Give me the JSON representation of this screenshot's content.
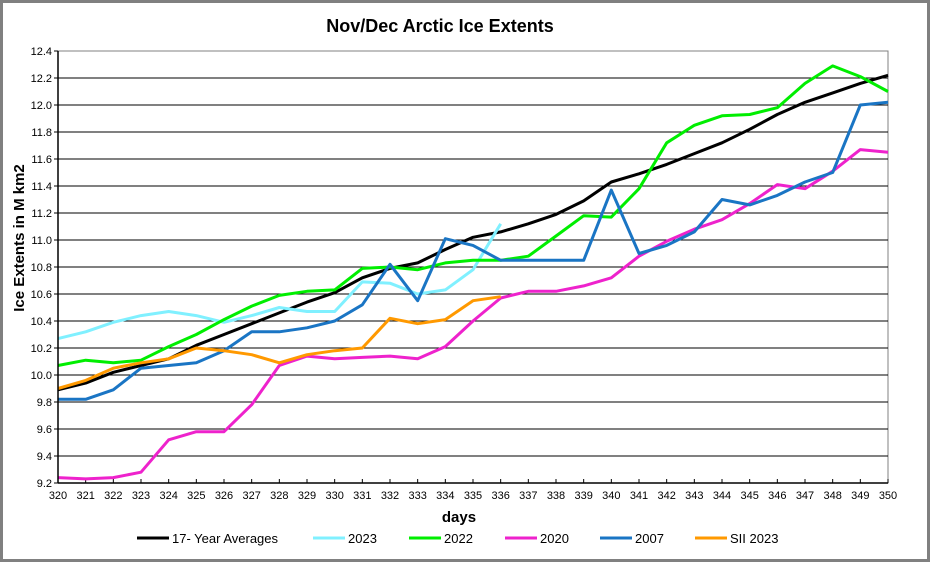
{
  "chart_data": {
    "type": "line",
    "title": "Nov/Dec Arctic Ice Extents",
    "xlabel": "days",
    "ylabel": "Ice Extents in M km2",
    "xlim": [
      320,
      350
    ],
    "ylim": [
      9.2,
      12.4
    ],
    "grid": "horizontal",
    "legend_position": "bottom",
    "x_ticks": [
      "320",
      "321",
      "322",
      "323",
      "324",
      "325",
      "326",
      "327",
      "328",
      "329",
      "330",
      "331",
      "332",
      "333",
      "334",
      "335",
      "336",
      "337",
      "338",
      "339",
      "340",
      "341",
      "342",
      "343",
      "344",
      "345",
      "346",
      "347",
      "348",
      "349",
      "350"
    ],
    "y_ticks": [
      "9.2",
      "9.4",
      "9.6",
      "9.8",
      "10.0",
      "10.2",
      "10.4",
      "10.6",
      "10.8",
      "11.0",
      "11.2",
      "11.4",
      "11.6",
      "11.8",
      "12.0",
      "12.2",
      "12.4"
    ],
    "series": [
      {
        "name": "17- Year Averages",
        "color": "#000000",
        "x": [
          320,
          321,
          322,
          323,
          324,
          325,
          326,
          327,
          328,
          329,
          330,
          331,
          332,
          333,
          334,
          335,
          336,
          337,
          338,
          339,
          340,
          341,
          342,
          343,
          344,
          345,
          346,
          347,
          348,
          349,
          350
        ],
        "values": [
          9.89,
          9.94,
          10.02,
          10.07,
          10.12,
          10.22,
          10.3,
          10.38,
          10.46,
          10.54,
          10.61,
          10.72,
          10.79,
          10.83,
          10.93,
          11.02,
          11.06,
          11.12,
          11.19,
          11.29,
          11.43,
          11.49,
          11.56,
          11.64,
          11.72,
          11.82,
          11.93,
          12.02,
          12.09,
          12.16,
          12.22
        ]
      },
      {
        "name": "2023",
        "color": "#80f0ff",
        "x": [
          320,
          321,
          322,
          323,
          324,
          325,
          326,
          327,
          328,
          329,
          330,
          331,
          332,
          333,
          334,
          335,
          336
        ],
        "values": [
          10.27,
          10.32,
          10.39,
          10.44,
          10.47,
          10.44,
          10.39,
          10.44,
          10.5,
          10.47,
          10.47,
          10.69,
          10.68,
          10.6,
          10.63,
          10.78,
          11.12
        ]
      },
      {
        "name": "2022",
        "color": "#00ee00",
        "x": [
          320,
          321,
          322,
          323,
          324,
          325,
          326,
          327,
          328,
          329,
          330,
          331,
          332,
          333,
          334,
          335,
          336,
          337,
          338,
          339,
          340,
          341,
          342,
          343,
          344,
          345,
          346,
          347,
          348,
          349,
          350
        ],
        "values": [
          10.07,
          10.11,
          10.09,
          10.11,
          10.21,
          10.3,
          10.41,
          10.51,
          10.59,
          10.62,
          10.63,
          10.79,
          10.8,
          10.78,
          10.83,
          10.85,
          10.85,
          10.88,
          11.03,
          11.18,
          11.17,
          11.38,
          11.72,
          11.85,
          11.92,
          11.93,
          11.98,
          12.16,
          12.29,
          12.21,
          12.1
        ]
      },
      {
        "name": "2020",
        "color": "#ee22cc",
        "x": [
          320,
          321,
          322,
          323,
          324,
          325,
          326,
          327,
          328,
          329,
          330,
          331,
          332,
          333,
          334,
          335,
          336,
          337,
          338,
          339,
          340,
          341,
          342,
          343,
          344,
          345,
          346,
          347,
          348,
          349,
          350
        ],
        "values": [
          9.24,
          9.23,
          9.24,
          9.28,
          9.52,
          9.58,
          9.58,
          9.78,
          10.07,
          10.14,
          10.12,
          10.13,
          10.14,
          10.12,
          10.21,
          10.4,
          10.57,
          10.62,
          10.62,
          10.66,
          10.72,
          10.88,
          10.99,
          11.08,
          11.15,
          11.27,
          11.41,
          11.38,
          11.51,
          11.67,
          11.65
        ]
      },
      {
        "name": "2007",
        "color": "#1a75c4",
        "x": [
          320,
          321,
          322,
          323,
          324,
          325,
          326,
          327,
          328,
          329,
          330,
          331,
          332,
          333,
          334,
          335,
          336,
          337,
          338,
          339,
          340,
          341,
          342,
          343,
          344,
          345,
          346,
          347,
          348,
          349,
          350
        ],
        "values": [
          9.82,
          9.82,
          9.89,
          10.05,
          10.07,
          10.09,
          10.18,
          10.32,
          10.32,
          10.35,
          10.4,
          10.52,
          10.82,
          10.55,
          11.01,
          10.96,
          10.85,
          10.85,
          10.85,
          10.85,
          11.37,
          10.9,
          10.96,
          11.06,
          11.3,
          11.26,
          11.33,
          11.43,
          11.5,
          12.0,
          12.02
        ]
      },
      {
        "name": "SII 2023",
        "color": "#ff9900",
        "x": [
          320,
          321,
          322,
          323,
          324,
          325,
          326,
          327,
          328,
          329,
          330,
          331,
          332,
          333,
          334,
          335,
          336
        ],
        "values": [
          9.9,
          9.96,
          10.05,
          10.09,
          10.12,
          10.2,
          10.18,
          10.15,
          10.09,
          10.15,
          10.18,
          10.2,
          10.42,
          10.38,
          10.41,
          10.55,
          10.58
        ]
      }
    ]
  }
}
